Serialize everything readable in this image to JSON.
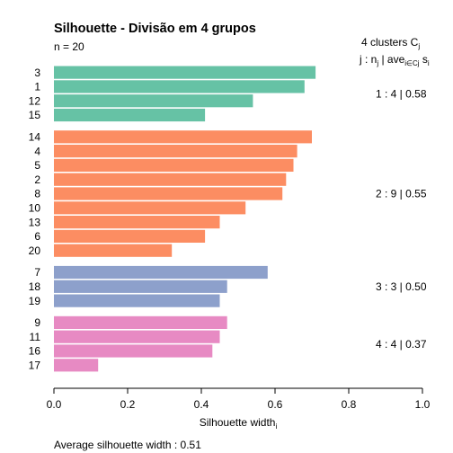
{
  "chart_data": {
    "type": "bar",
    "orientation": "horizontal",
    "title": "Silhouette - Divisão em 4 grupos",
    "n_label": "n = 20",
    "xlabel": "Silhouette width",
    "xlabel_sub": "i",
    "xlim": [
      0.0,
      1.0
    ],
    "xticks": [
      "0.0",
      "0.2",
      "0.4",
      "0.6",
      "0.8",
      "1.0"
    ],
    "footer": "Average silhouette width :  0.51",
    "legend_header": {
      "clusters_text": "4  clusters  C",
      "clusters_sub": "j",
      "line2_a": "j :  n",
      "line2_sub": "j",
      "line2_b": " | ave",
      "line2_sub2": "i∈Cj",
      "line2_c": " s",
      "line2_sub3": "i"
    },
    "clusters": [
      {
        "label": "1 :  4  |  0.58",
        "color": "#66C2A5",
        "bars": [
          {
            "id": "3",
            "value": 0.71
          },
          {
            "id": "1",
            "value": 0.68
          },
          {
            "id": "12",
            "value": 0.54
          },
          {
            "id": "15",
            "value": 0.41
          }
        ]
      },
      {
        "label": "2 :  9  |  0.55",
        "color": "#FC8D62",
        "bars": [
          {
            "id": "14",
            "value": 0.7
          },
          {
            "id": "4",
            "value": 0.66
          },
          {
            "id": "5",
            "value": 0.65
          },
          {
            "id": "2",
            "value": 0.63
          },
          {
            "id": "8",
            "value": 0.62
          },
          {
            "id": "10",
            "value": 0.52
          },
          {
            "id": "13",
            "value": 0.45
          },
          {
            "id": "6",
            "value": 0.41
          },
          {
            "id": "20",
            "value": 0.32
          }
        ]
      },
      {
        "label": "3 :  3  |  0.50",
        "color": "#8DA0CB",
        "bars": [
          {
            "id": "7",
            "value": 0.58
          },
          {
            "id": "18",
            "value": 0.47
          },
          {
            "id": "19",
            "value": 0.45
          }
        ]
      },
      {
        "label": "4 :  4  |  0.37",
        "color": "#E78AC3",
        "bars": [
          {
            "id": "9",
            "value": 0.47
          },
          {
            "id": "11",
            "value": 0.45
          },
          {
            "id": "16",
            "value": 0.43
          },
          {
            "id": "17",
            "value": 0.12
          }
        ]
      }
    ]
  }
}
